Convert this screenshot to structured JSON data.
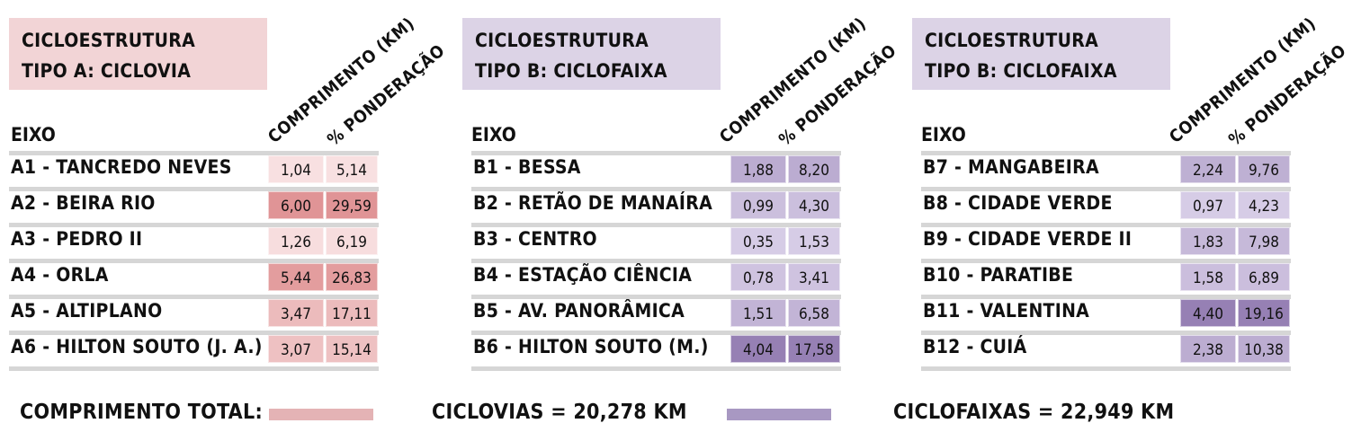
{
  "colors": {
    "ciclovia_box": "#f2d4d6",
    "ciclofaixa_box": "#dcd3e6",
    "ciclovia_swatch": "#e4b3b5",
    "ciclofaixa_swatch": "#a898c2"
  },
  "column_headers": {
    "comprimento": "COMPRIMENTO (KM)",
    "ponderacao": "% PONDERAÇÃO"
  },
  "eixo_label": "EIXO",
  "panels": [
    {
      "title_line1": "CICLOESTRUTURA",
      "title_line2": "TIPO A: CICLOVIA",
      "rows": [
        {
          "label": "A1 - TANCREDO NEVES",
          "km": "1,04",
          "pct": "5,14"
        },
        {
          "label": "A2 - BEIRA RIO",
          "km": "6,00",
          "pct": "29,59"
        },
        {
          "label": "A3 - PEDRO II",
          "km": "1,26",
          "pct": "6,19"
        },
        {
          "label": "A4 - ORLA",
          "km": "5,44",
          "pct": "26,83"
        },
        {
          "label": "A5 - ALTIPLANO",
          "km": "3,47",
          "pct": "17,11"
        },
        {
          "label": "A6 - HILTON SOUTO (J. A.)",
          "km": "3,07",
          "pct": "15,14"
        }
      ]
    },
    {
      "title_line1": "CICLOESTRUTURA",
      "title_line2": "TIPO B: CICLOFAIXA",
      "rows": [
        {
          "label": "B1 - BESSA",
          "km": "1,88",
          "pct": "8,20"
        },
        {
          "label": "B2 - RETÃO DE MANAÍRA",
          "km": "0,99",
          "pct": "4,30"
        },
        {
          "label": "B3 - CENTRO",
          "km": "0,35",
          "pct": "1,53"
        },
        {
          "label": "B4 - ESTAÇÃO CIÊNCIA",
          "km": "0,78",
          "pct": "3,41"
        },
        {
          "label": "B5 - AV. PANORÂMICA",
          "km": "1,51",
          "pct": "6,58"
        },
        {
          "label": "B6 - HILTON SOUTO (M.)",
          "km": "4,04",
          "pct": "17,58"
        }
      ]
    },
    {
      "title_line1": "CICLOESTRUTURA",
      "title_line2": "TIPO B: CICLOFAIXA",
      "rows": [
        {
          "label": "B7 - MANGABEIRA",
          "km": "2,24",
          "pct": "9,76"
        },
        {
          "label": "B8 - CIDADE VERDE",
          "km": "0,97",
          "pct": "4,23"
        },
        {
          "label": "B9 - CIDADE VERDE II",
          "km": "1,83",
          "pct": "7,98"
        },
        {
          "label": "B10 - PARATIBE",
          "km": "1,58",
          "pct": "6,89"
        },
        {
          "label": "B11 - VALENTINA",
          "km": "4,40",
          "pct": "19,16"
        },
        {
          "label": "B12 - CUIÁ",
          "km": "2,38",
          "pct": "10,38"
        }
      ]
    }
  ],
  "footer": {
    "total_label": "COMPRIMENTO TOTAL:",
    "ciclovias": "CICLOVIAS = 20,278 KM",
    "ciclofaixas": "CICLOFAIXAS = 22,949 KM"
  },
  "chart_data": {
    "type": "table",
    "columns": [
      "EIXO",
      "COMPRIMENTO (KM)",
      "% PONDERAÇÃO"
    ],
    "tables": [
      {
        "title": "CICLOESTRUTURA TIPO A: CICLOVIA",
        "categories": [
          "A1 - TANCREDO NEVES",
          "A2 - BEIRA RIO",
          "A3 - PEDRO II",
          "A4 - ORLA",
          "A5 - ALTIPLANO",
          "A6 - HILTON SOUTO (J. A.)"
        ],
        "series": [
          {
            "name": "COMPRIMENTO (KM)",
            "values": [
              1.04,
              6.0,
              1.26,
              5.44,
              3.47,
              3.07
            ]
          },
          {
            "name": "% PONDERAÇÃO",
            "values": [
              5.14,
              29.59,
              6.19,
              26.83,
              17.11,
              15.14
            ]
          }
        ]
      },
      {
        "title": "CICLOESTRUTURA TIPO B: CICLOFAIXA",
        "categories": [
          "B1 - BESSA",
          "B2 - RETÃO DE MANAÍRA",
          "B3 - CENTRO",
          "B4 - ESTAÇÃO CIÊNCIA",
          "B5 - AV. PANORÂMICA",
          "B6 - HILTON SOUTO (M.)"
        ],
        "series": [
          {
            "name": "COMPRIMENTO (KM)",
            "values": [
              1.88,
              0.99,
              0.35,
              0.78,
              1.51,
              4.04
            ]
          },
          {
            "name": "% PONDERAÇÃO",
            "values": [
              8.2,
              4.3,
              1.53,
              3.41,
              6.58,
              17.58
            ]
          }
        ]
      },
      {
        "title": "CICLOESTRUTURA TIPO B: CICLOFAIXA",
        "categories": [
          "B7 - MANGABEIRA",
          "B8 - CIDADE VERDE",
          "B9 - CIDADE VERDE II",
          "B10 - PARATIBE",
          "B11 - VALENTINA",
          "B12 - CUIÁ"
        ],
        "series": [
          {
            "name": "COMPRIMENTO (KM)",
            "values": [
              2.24,
              0.97,
              1.83,
              1.58,
              4.4,
              2.38
            ]
          },
          {
            "name": "% PONDERAÇÃO",
            "values": [
              9.76,
              4.23,
              7.98,
              6.89,
              19.16,
              10.38
            ]
          }
        ]
      }
    ]
  }
}
